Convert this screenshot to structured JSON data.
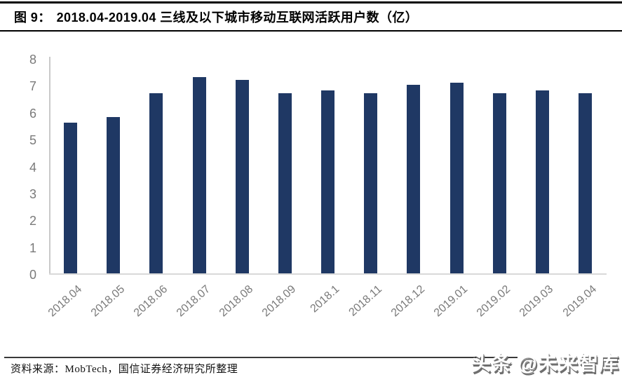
{
  "header": {
    "figure_label": "图 9：",
    "title": "2018.04-2019.04 三线及以下城市移动互联网活跃用户数（亿）"
  },
  "chart_data": {
    "type": "bar",
    "title": "2018.04-2019.04 三线及以下城市移动互联网活跃用户数（亿）",
    "categories": [
      "2018.04",
      "2018.05",
      "2018.06",
      "2018.07",
      "2018.08",
      "2018.09",
      "2018.1",
      "2018.11",
      "2018.12",
      "2019.01",
      "2019.02",
      "2019.03",
      "2019.04"
    ],
    "values": [
      5.6,
      5.8,
      6.7,
      7.3,
      7.2,
      6.7,
      6.8,
      6.7,
      7.0,
      7.1,
      6.7,
      6.8,
      6.7
    ],
    "xlabel": "",
    "ylabel": "",
    "ylim": [
      0,
      8
    ],
    "yticks": [
      0,
      1,
      2,
      3,
      4,
      5,
      6,
      7,
      8
    ],
    "grid": false,
    "legend": "none",
    "bar_color": "#1f3864",
    "axis_text_color": "#7a7a7a"
  },
  "footer": {
    "source": "资料来源：MobTech，国信证券经济研究所整理"
  },
  "watermark": {
    "text": "头条 @未来智库"
  },
  "colors": {
    "bar": "#1f3864",
    "header_rule": "#000000",
    "axis_line": "#c9c9c9",
    "baseline": "#d9d9d9",
    "axis_text": "#7a7a7a",
    "footer_rule": "#3a3a3a",
    "watermark_shadow": "#6e6e6e"
  }
}
